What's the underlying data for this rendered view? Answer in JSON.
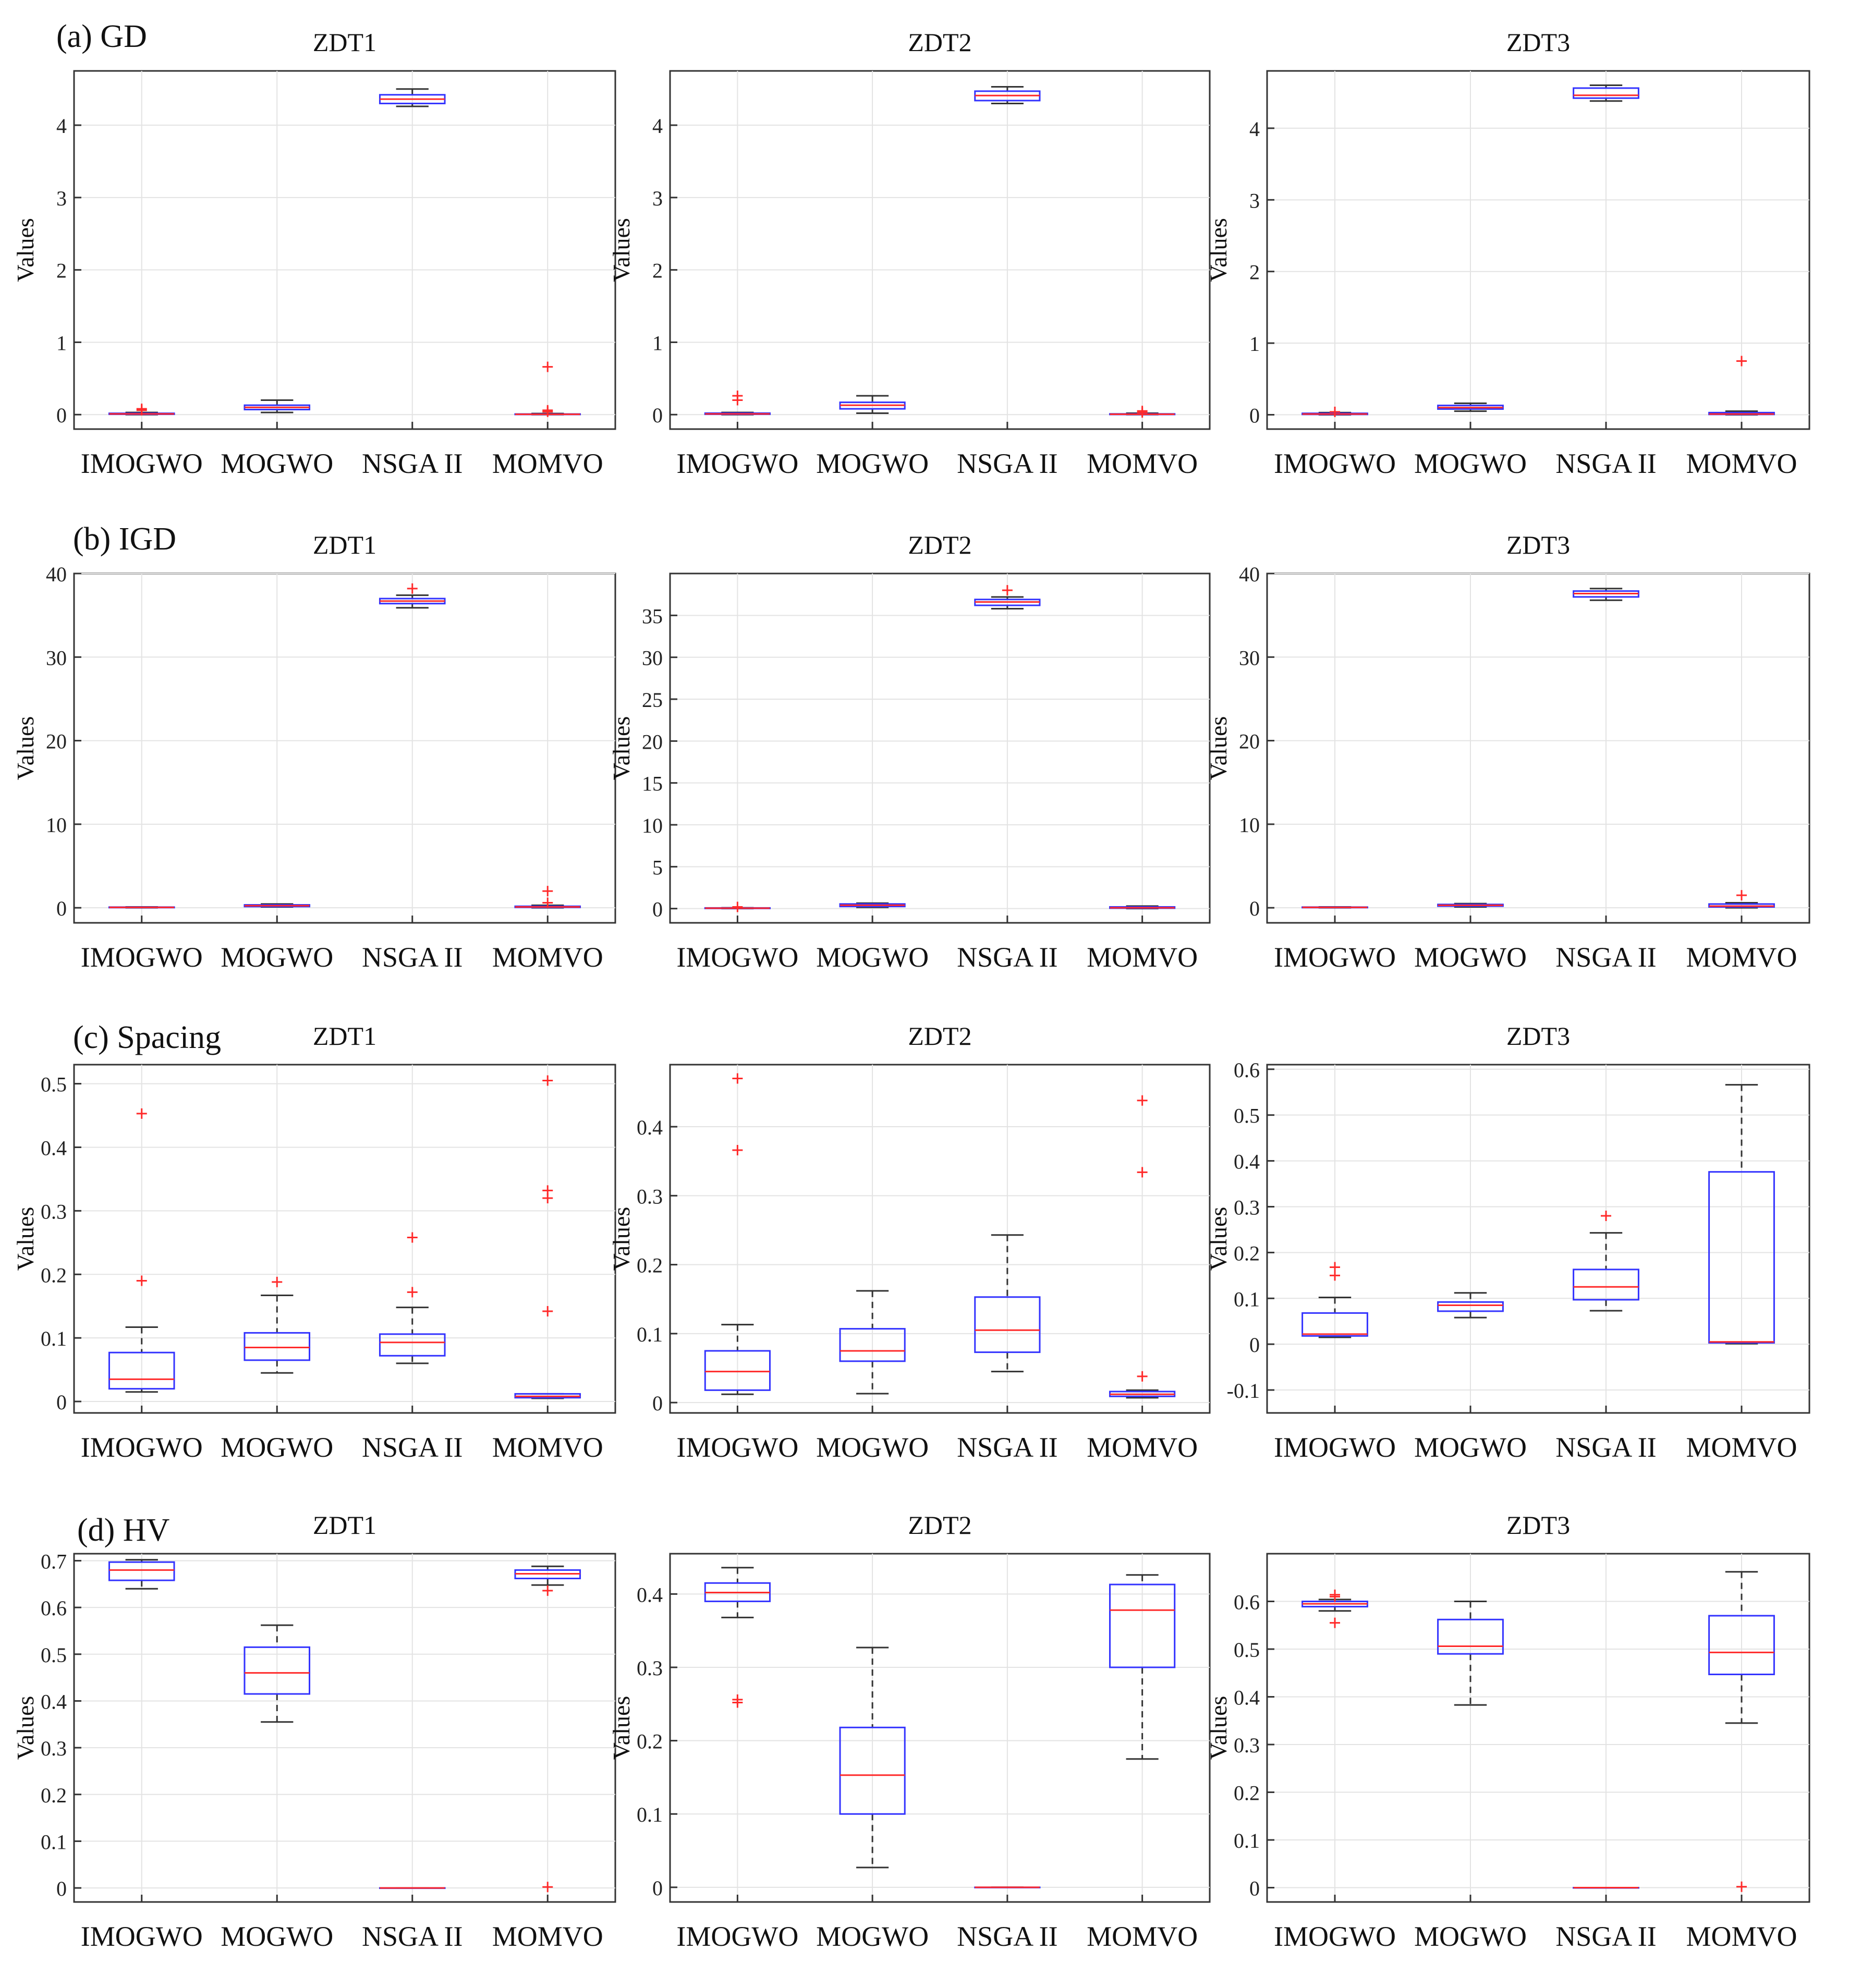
{
  "figure": {
    "categories": [
      "IMOGWO",
      "MOGWO",
      "NSGA II",
      "MOMVO"
    ],
    "ylabel": "Values",
    "colors": {
      "box": "#3333ff",
      "median": "#ff2a2a",
      "whisker": "#333333",
      "outlier": "#ff2a2a",
      "grid": "#e3e3e3",
      "axis": "#333333"
    }
  },
  "rows": [
    {
      "label": "(a) GD"
    },
    {
      "label": "(b) IGD"
    },
    {
      "label": "(c) Spacing"
    },
    {
      "label": "(d) HV"
    }
  ],
  "chart_data": [
    {
      "type": "box",
      "metric": "GD",
      "title": "ZDT1",
      "xlabel": "",
      "ylabel": "Values",
      "categories": [
        "IMOGWO",
        "MOGWO",
        "NSGA II",
        "MOMVO"
      ],
      "ylim": [
        -0.2,
        4.75
      ],
      "yticks": [
        0,
        1,
        2,
        3,
        4
      ],
      "ytick_labels": [
        "0",
        "1",
        "2",
        "3",
        "4"
      ],
      "boxes": [
        {
          "lw": 0,
          "q1": 0.005,
          "med": 0.01,
          "q3": 0.018,
          "uw": 0.03,
          "outliers": [
            0.06,
            0.08
          ]
        },
        {
          "lw": 0.03,
          "q1": 0.07,
          "med": 0.1,
          "q3": 0.13,
          "uw": 0.2,
          "outliers": []
        },
        {
          "lw": 4.26,
          "q1": 4.3,
          "med": 4.36,
          "q3": 4.42,
          "uw": 4.5,
          "outliers": []
        },
        {
          "lw": 0,
          "q1": 0.002,
          "med": 0.004,
          "q3": 0.008,
          "uw": 0.015,
          "outliers": [
            0.04,
            0.06,
            0.66
          ]
        }
      ]
    },
    {
      "type": "box",
      "metric": "GD",
      "title": "ZDT2",
      "xlabel": "",
      "ylabel": "Values",
      "categories": [
        "IMOGWO",
        "MOGWO",
        "NSGA II",
        "MOMVO"
      ],
      "ylim": [
        -0.2,
        4.75
      ],
      "yticks": [
        0,
        1,
        2,
        3,
        4
      ],
      "ytick_labels": [
        "0",
        "1",
        "2",
        "3",
        "4"
      ],
      "boxes": [
        {
          "lw": 0,
          "q1": 0.005,
          "med": 0.01,
          "q3": 0.02,
          "uw": 0.03,
          "outliers": [
            0.2,
            0.26
          ]
        },
        {
          "lw": 0.02,
          "q1": 0.08,
          "med": 0.13,
          "q3": 0.17,
          "uw": 0.26,
          "outliers": []
        },
        {
          "lw": 4.3,
          "q1": 4.34,
          "med": 4.41,
          "q3": 4.47,
          "uw": 4.53,
          "outliers": []
        },
        {
          "lw": 0,
          "q1": 0.002,
          "med": 0.005,
          "q3": 0.01,
          "uw": 0.02,
          "outliers": [
            0.03,
            0.05
          ]
        }
      ]
    },
    {
      "type": "box",
      "metric": "GD",
      "title": "ZDT3",
      "xlabel": "",
      "ylabel": "Values",
      "categories": [
        "IMOGWO",
        "MOGWO",
        "NSGA II",
        "MOMVO"
      ],
      "ylim": [
        -0.2,
        4.8
      ],
      "yticks": [
        0,
        1,
        2,
        3,
        4
      ],
      "ytick_labels": [
        "0",
        "1",
        "2",
        "3",
        "4"
      ],
      "boxes": [
        {
          "lw": 0,
          "q1": 0.005,
          "med": 0.01,
          "q3": 0.02,
          "uw": 0.03,
          "outliers": [
            0.04
          ]
        },
        {
          "lw": 0.05,
          "q1": 0.08,
          "med": 0.1,
          "q3": 0.13,
          "uw": 0.16,
          "outliers": []
        },
        {
          "lw": 4.38,
          "q1": 4.42,
          "med": 4.46,
          "q3": 4.56,
          "uw": 4.6,
          "outliers": []
        },
        {
          "lw": 0,
          "q1": 0.005,
          "med": 0.01,
          "q3": 0.03,
          "uw": 0.05,
          "outliers": [
            0.75
          ]
        }
      ]
    },
    {
      "type": "box",
      "metric": "IGD",
      "title": "ZDT1",
      "xlabel": "",
      "ylabel": "Values",
      "categories": [
        "IMOGWO",
        "MOGWO",
        "NSGA II",
        "MOMVO"
      ],
      "ylim": [
        -1.8,
        40
      ],
      "yticks": [
        0,
        10,
        20,
        30,
        40
      ],
      "ytick_labels": [
        "0",
        "10",
        "20",
        "30",
        "40"
      ],
      "boxes": [
        {
          "lw": 0,
          "q1": 0.02,
          "med": 0.05,
          "q3": 0.08,
          "uw": 0.1,
          "outliers": []
        },
        {
          "lw": 0.1,
          "q1": 0.15,
          "med": 0.25,
          "q3": 0.35,
          "uw": 0.45,
          "outliers": []
        },
        {
          "lw": 35.9,
          "q1": 36.4,
          "med": 36.7,
          "q3": 37.0,
          "uw": 37.4,
          "outliers": [
            38.2
          ]
        },
        {
          "lw": 0,
          "q1": 0.05,
          "med": 0.1,
          "q3": 0.18,
          "uw": 0.3,
          "outliers": [
            0.6,
            2.0
          ]
        }
      ]
    },
    {
      "type": "box",
      "metric": "IGD",
      "title": "ZDT2",
      "xlabel": "",
      "ylabel": "Values",
      "categories": [
        "IMOGWO",
        "MOGWO",
        "NSGA II",
        "MOMVO"
      ],
      "ylim": [
        -1.7,
        40
      ],
      "yticks": [
        0,
        5,
        10,
        15,
        20,
        25,
        30,
        35
      ],
      "ytick_labels": [
        "0",
        "5",
        "10",
        "15",
        "20",
        "25",
        "30",
        "35"
      ],
      "boxes": [
        {
          "lw": 0,
          "q1": 0.02,
          "med": 0.05,
          "q3": 0.08,
          "uw": 0.1,
          "outliers": [
            0.2
          ]
        },
        {
          "lw": 0.15,
          "q1": 0.25,
          "med": 0.4,
          "q3": 0.55,
          "uw": 0.65,
          "outliers": []
        },
        {
          "lw": 35.8,
          "q1": 36.2,
          "med": 36.6,
          "q3": 36.9,
          "uw": 37.2,
          "outliers": [
            38.0
          ]
        },
        {
          "lw": 0,
          "q1": 0.05,
          "med": 0.1,
          "q3": 0.2,
          "uw": 0.3,
          "outliers": []
        }
      ]
    },
    {
      "type": "box",
      "metric": "IGD",
      "title": "ZDT3",
      "xlabel": "",
      "ylabel": "Values",
      "categories": [
        "IMOGWO",
        "MOGWO",
        "NSGA II",
        "MOMVO"
      ],
      "ylim": [
        -1.8,
        40
      ],
      "yticks": [
        0,
        10,
        20,
        30,
        40
      ],
      "ytick_labels": [
        "0",
        "10",
        "20",
        "30",
        "40"
      ],
      "boxes": [
        {
          "lw": 0,
          "q1": 0.02,
          "med": 0.05,
          "q3": 0.08,
          "uw": 0.1,
          "outliers": []
        },
        {
          "lw": 0.1,
          "q1": 0.2,
          "med": 0.3,
          "q3": 0.4,
          "uw": 0.5,
          "outliers": []
        },
        {
          "lw": 36.8,
          "q1": 37.2,
          "med": 37.6,
          "q3": 37.9,
          "uw": 38.2,
          "outliers": []
        },
        {
          "lw": 0,
          "q1": 0.1,
          "med": 0.2,
          "q3": 0.45,
          "uw": 0.6,
          "outliers": [
            1.5
          ]
        }
      ]
    },
    {
      "type": "box",
      "metric": "Spacing",
      "title": "ZDT1",
      "xlabel": "",
      "ylabel": "Values",
      "categories": [
        "IMOGWO",
        "MOGWO",
        "NSGA II",
        "MOMVO"
      ],
      "ylim": [
        -0.018,
        0.53
      ],
      "yticks": [
        0,
        0.1,
        0.2,
        0.3,
        0.4,
        0.5
      ],
      "ytick_labels": [
        "0",
        "0.1",
        "0.2",
        "0.3",
        "0.4",
        "0.5"
      ],
      "boxes": [
        {
          "lw": 0.015,
          "q1": 0.02,
          "med": 0.035,
          "q3": 0.077,
          "uw": 0.117,
          "outliers": [
            0.19,
            0.453
          ]
        },
        {
          "lw": 0.045,
          "q1": 0.065,
          "med": 0.085,
          "q3": 0.108,
          "uw": 0.167,
          "outliers": [
            0.188
          ]
        },
        {
          "lw": 0.06,
          "q1": 0.072,
          "med": 0.093,
          "q3": 0.106,
          "uw": 0.148,
          "outliers": [
            0.172,
            0.258
          ]
        },
        {
          "lw": 0.005,
          "q1": 0.006,
          "med": 0.008,
          "q3": 0.012,
          "uw": 0.012,
          "outliers": [
            0.142,
            0.32,
            0.332,
            0.505
          ]
        }
      ]
    },
    {
      "type": "box",
      "metric": "Spacing",
      "title": "ZDT2",
      "xlabel": "",
      "ylabel": "Values",
      "categories": [
        "IMOGWO",
        "MOGWO",
        "NSGA II",
        "MOMVO"
      ],
      "ylim": [
        -0.015,
        0.49
      ],
      "yticks": [
        0,
        0.1,
        0.2,
        0.3,
        0.4
      ],
      "ytick_labels": [
        "0",
        "0.1",
        "0.2",
        "0.3",
        "0.4"
      ],
      "boxes": [
        {
          "lw": 0.012,
          "q1": 0.018,
          "med": 0.045,
          "q3": 0.075,
          "uw": 0.113,
          "outliers": [
            0.366,
            0.47
          ]
        },
        {
          "lw": 0.013,
          "q1": 0.06,
          "med": 0.075,
          "q3": 0.107,
          "uw": 0.162,
          "outliers": []
        },
        {
          "lw": 0.045,
          "q1": 0.073,
          "med": 0.105,
          "q3": 0.153,
          "uw": 0.243,
          "outliers": []
        },
        {
          "lw": 0.007,
          "q1": 0.009,
          "med": 0.012,
          "q3": 0.016,
          "uw": 0.018,
          "outliers": [
            0.038,
            0.334,
            0.438
          ]
        }
      ]
    },
    {
      "type": "box",
      "metric": "Spacing",
      "title": "ZDT3",
      "xlabel": "",
      "ylabel": "Values",
      "categories": [
        "IMOGWO",
        "MOGWO",
        "NSGA II",
        "MOMVO"
      ],
      "ylim": [
        -0.15,
        0.61
      ],
      "yticks": [
        -0.1,
        0,
        0.1,
        0.2,
        0.3,
        0.4,
        0.5,
        0.6
      ],
      "ytick_labels": [
        "-0.1",
        "0",
        "0.1",
        "0.2",
        "0.3",
        "0.4",
        "0.5",
        "0.6"
      ],
      "boxes": [
        {
          "lw": 0.015,
          "q1": 0.018,
          "med": 0.022,
          "q3": 0.068,
          "uw": 0.102,
          "outliers": [
            0.15,
            0.168
          ]
        },
        {
          "lw": 0.058,
          "q1": 0.072,
          "med": 0.085,
          "q3": 0.092,
          "uw": 0.112,
          "outliers": []
        },
        {
          "lw": 0.073,
          "q1": 0.097,
          "med": 0.125,
          "q3": 0.163,
          "uw": 0.243,
          "outliers": [
            0.28
          ]
        },
        {
          "lw": 0.001,
          "q1": 0.003,
          "med": 0.005,
          "q3": 0.376,
          "uw": 0.566,
          "outliers": []
        }
      ]
    },
    {
      "type": "box",
      "metric": "HV",
      "title": "ZDT1",
      "xlabel": "",
      "ylabel": "Values",
      "categories": [
        "IMOGWO",
        "MOGWO",
        "NSGA II",
        "MOMVO"
      ],
      "ylim": [
        -0.03,
        0.715
      ],
      "yticks": [
        0,
        0.1,
        0.2,
        0.3,
        0.4,
        0.5,
        0.6,
        0.7
      ],
      "ytick_labels": [
        "0",
        "0.1",
        "0.2",
        "0.3",
        "0.4",
        "0.5",
        "0.6",
        "0.7"
      ],
      "boxes": [
        {
          "lw": 0.64,
          "q1": 0.658,
          "med": 0.68,
          "q3": 0.697,
          "uw": 0.702,
          "outliers": []
        },
        {
          "lw": 0.355,
          "q1": 0.415,
          "med": 0.46,
          "q3": 0.515,
          "uw": 0.562,
          "outliers": []
        },
        {
          "lw": 0,
          "q1": 0,
          "med": 0,
          "q3": 0,
          "uw": 0,
          "outliers": []
        },
        {
          "lw": 0.648,
          "q1": 0.662,
          "med": 0.672,
          "q3": 0.68,
          "uw": 0.688,
          "outliers": [
            0.002,
            0.636
          ]
        }
      ]
    },
    {
      "type": "box",
      "metric": "HV",
      "title": "ZDT2",
      "xlabel": "",
      "ylabel": "Values",
      "categories": [
        "IMOGWO",
        "MOGWO",
        "NSGA II",
        "MOMVO"
      ],
      "ylim": [
        -0.02,
        0.455
      ],
      "yticks": [
        0,
        0.1,
        0.2,
        0.3,
        0.4
      ],
      "ytick_labels": [
        "0",
        "0.1",
        "0.2",
        "0.3",
        "0.4"
      ],
      "boxes": [
        {
          "lw": 0.368,
          "q1": 0.39,
          "med": 0.402,
          "q3": 0.415,
          "uw": 0.436,
          "outliers": [
            0.252,
            0.256
          ]
        },
        {
          "lw": 0.027,
          "q1": 0.1,
          "med": 0.153,
          "q3": 0.218,
          "uw": 0.327,
          "outliers": []
        },
        {
          "lw": 0,
          "q1": 0,
          "med": 0,
          "q3": 0,
          "uw": 0,
          "outliers": []
        },
        {
          "lw": 0.175,
          "q1": 0.3,
          "med": 0.378,
          "q3": 0.413,
          "uw": 0.426,
          "outliers": []
        }
      ]
    },
    {
      "type": "box",
      "metric": "HV",
      "title": "ZDT3",
      "xlabel": "",
      "ylabel": "Values",
      "categories": [
        "IMOGWO",
        "MOGWO",
        "NSGA II",
        "MOMVO"
      ],
      "ylim": [
        -0.03,
        0.7
      ],
      "yticks": [
        0,
        0.1,
        0.2,
        0.3,
        0.4,
        0.5,
        0.6
      ],
      "ytick_labels": [
        "0",
        "0.1",
        "0.2",
        "0.3",
        "0.4",
        "0.5",
        "0.6"
      ],
      "boxes": [
        {
          "lw": 0.58,
          "q1": 0.589,
          "med": 0.595,
          "q3": 0.6,
          "uw": 0.604,
          "outliers": [
            0.555,
            0.61,
            0.614
          ]
        },
        {
          "lw": 0.383,
          "q1": 0.49,
          "med": 0.506,
          "q3": 0.562,
          "uw": 0.6,
          "outliers": []
        },
        {
          "lw": 0,
          "q1": 0,
          "med": 0,
          "q3": 0,
          "uw": 0,
          "outliers": []
        },
        {
          "lw": 0.345,
          "q1": 0.447,
          "med": 0.493,
          "q3": 0.57,
          "uw": 0.662,
          "outliers": [
            0.002
          ]
        }
      ]
    }
  ]
}
